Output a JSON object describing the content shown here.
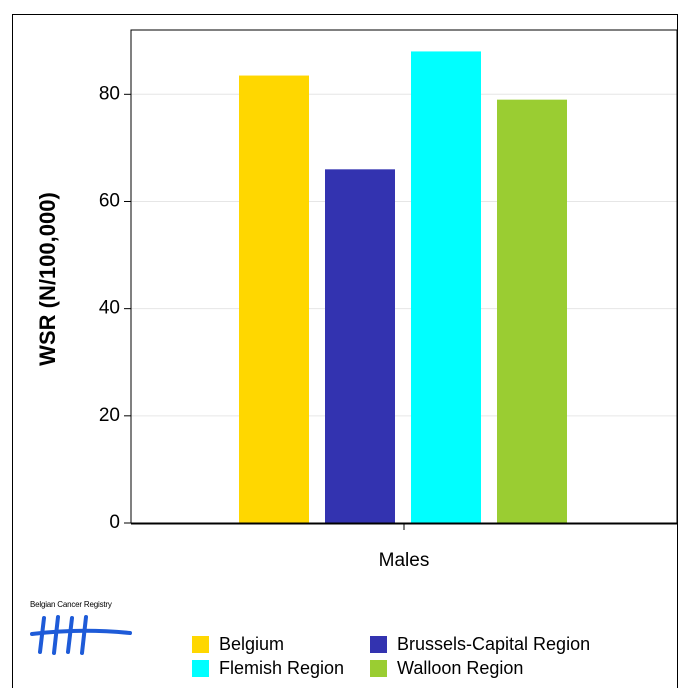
{
  "chart_data": {
    "type": "bar",
    "categories": [
      "Males"
    ],
    "series": [
      {
        "name": "Belgium",
        "values": [
          83.5
        ],
        "color": "#FFD700"
      },
      {
        "name": "Brussels-Capital Region",
        "values": [
          66.0
        ],
        "color": "#3333B0"
      },
      {
        "name": "Flemish Region",
        "values": [
          88.0
        ],
        "color": "#00FFFF"
      },
      {
        "name": "Walloon Region",
        "values": [
          79.0
        ],
        "color": "#9ACD32"
      }
    ],
    "title": "",
    "xlabel": "",
    "ylabel": "WSR (N/100,000)",
    "ylim": [
      0,
      92
    ],
    "yticks": [
      "0",
      "20",
      "40",
      "60",
      "80"
    ],
    "grid": true,
    "legend_position": "bottom"
  },
  "logo": {
    "text": "Belgian Cancer Registry",
    "color": "#1E5BD8",
    "icon": "tally-marks-icon"
  }
}
